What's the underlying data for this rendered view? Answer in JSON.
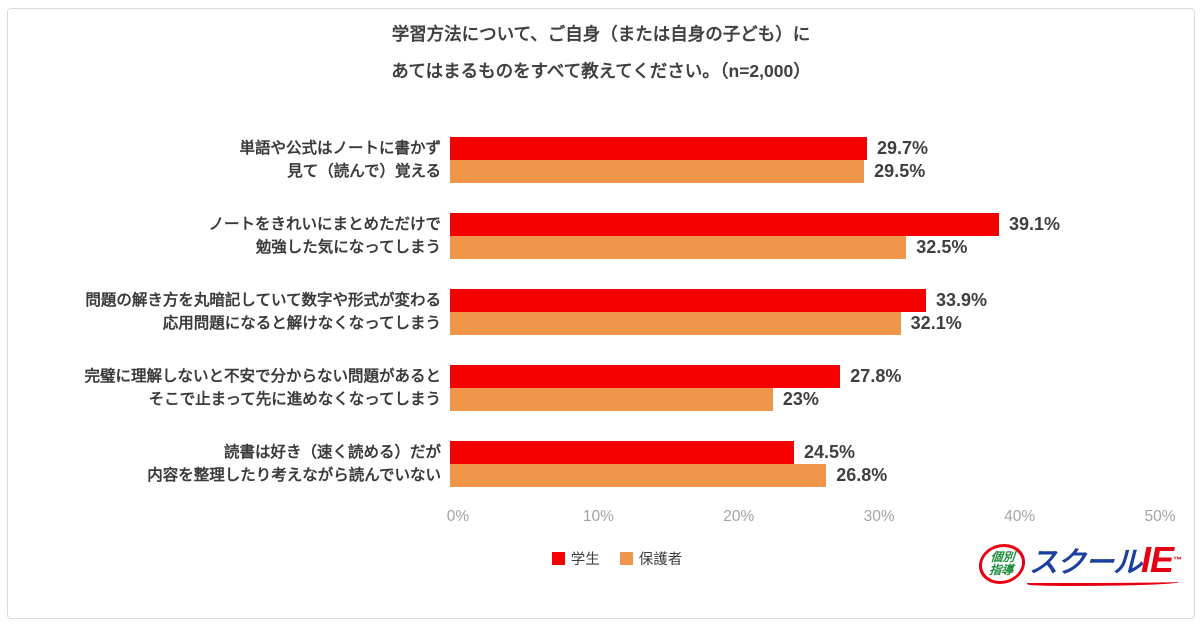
{
  "title": {
    "line1": "学習方法について、ご自身（または自身の子ども）に",
    "line2": "あてはまるものをすべて教えてください。（n=2,000）"
  },
  "chart_data": {
    "type": "bar",
    "orientation": "horizontal",
    "title": "学習方法について、ご自身（または自身の子ども）に あてはまるものをすべて教えてください。（n=2,000）",
    "n": "2,000",
    "categories": [
      {
        "line1": "単語や公式はノートに書かず",
        "line2": "見て（読んで）覚える"
      },
      {
        "line1": "ノートをきれいにまとめただけで",
        "line2": "勉強した気になってしまう"
      },
      {
        "line1": "問題の解き方を丸暗記していて数字や形式が変わる",
        "line2": "応用問題になると解けなくなってしまう"
      },
      {
        "line1": "完璧に理解しないと不安で分からない問題があると",
        "line2": "そこで止まって先に進めなくなってしまう"
      },
      {
        "line1": "読書は好き（速く読める）だが",
        "line2": "内容を整理したり考えながら読んでいない"
      }
    ],
    "series": [
      {
        "name": "学生",
        "color": "#f40000",
        "values": [
          29.7,
          39.1,
          33.9,
          27.8,
          24.5
        ],
        "labels": [
          "29.7%",
          "39.1%",
          "33.9%",
          "27.8%",
          "24.5%"
        ]
      },
      {
        "name": "保護者",
        "color": "#f0964b",
        "values": [
          29.5,
          32.5,
          32.1,
          23,
          26.8
        ],
        "labels": [
          "29.5%",
          "32.5%",
          "32.1%",
          "23%",
          "26.8%"
        ]
      }
    ],
    "xlim": [
      0,
      50
    ],
    "x_ticks": [
      "0%",
      "10%",
      "20%",
      "30%",
      "40%",
      "50%"
    ],
    "grid": false,
    "legend_position": "bottom-center"
  },
  "legend": {
    "student": "学生",
    "parent": "保護者"
  },
  "colors": {
    "student": "#f40000",
    "parent": "#f0964b",
    "axis_text": "#a3a3a3",
    "text": "#404040",
    "frame_border": "#d9d9d9"
  },
  "logo": {
    "oval_line1": "個別",
    "oval_line2": "指導",
    "text_school": "スクール",
    "text_ie": "IE",
    "tm": "™"
  }
}
